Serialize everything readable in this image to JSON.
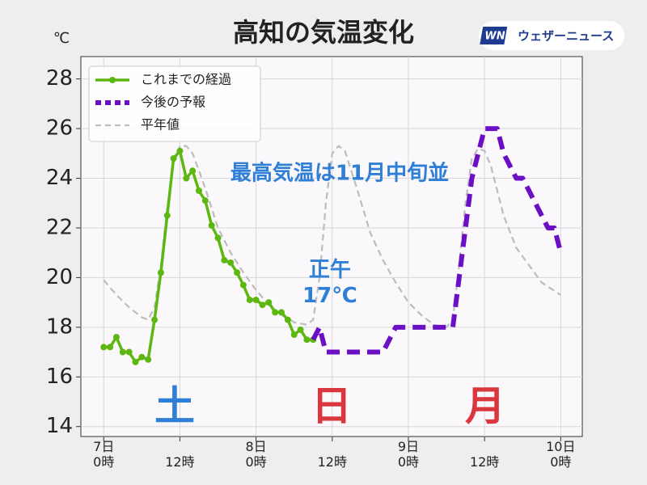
{
  "chart_data": {
    "type": "line",
    "title": "高知の気温変化",
    "y_unit": "℃",
    "brand": "ウェザーニュース",
    "brand_icon": "WN",
    "annotation": "最高気温は11月中旬並",
    "noon_note": "正午\n17℃",
    "day_labels": [
      {
        "text": "土",
        "color": "#2f7fd6"
      },
      {
        "text": "日",
        "color": "#d9363e"
      },
      {
        "text": "月",
        "color": "#d9363e"
      }
    ],
    "grid": true,
    "legend": "upper left",
    "xlim": [
      -3.6,
      75.4
    ],
    "ylim": [
      13.6,
      28.9
    ],
    "yticks": [
      14,
      16,
      18,
      20,
      22,
      24,
      26,
      28
    ],
    "xticks": [
      {
        "value": 0,
        "label": "7日\n0時"
      },
      {
        "value": 12,
        "label": "12時"
      },
      {
        "value": 24,
        "label": "8日\n0時"
      },
      {
        "value": 36,
        "label": "12時"
      },
      {
        "value": 48,
        "label": "9日\n0時"
      },
      {
        "value": 60,
        "label": "12時"
      },
      {
        "value": 72,
        "label": "10日\n0時"
      }
    ],
    "series": [
      {
        "name": "これまでの経過",
        "color": "#5cb811",
        "style": "solid-marker",
        "x": [
          0,
          1,
          2,
          3,
          4,
          5,
          6,
          7,
          8,
          9,
          10,
          11,
          12,
          13,
          14,
          15,
          16,
          17,
          18,
          19,
          20,
          21,
          22,
          23,
          24,
          25,
          26,
          27,
          28,
          29,
          30,
          31,
          32,
          33
        ],
        "values": [
          17.2,
          17.2,
          17.6,
          17.0,
          17.0,
          16.6,
          16.8,
          16.7,
          18.3,
          20.2,
          22.5,
          24.8,
          25.1,
          24.0,
          24.3,
          23.5,
          23.1,
          22.1,
          21.6,
          20.7,
          20.6,
          20.2,
          19.7,
          19.1,
          19.1,
          18.9,
          19.0,
          18.6,
          18.6,
          18.3,
          17.7,
          17.9,
          17.5,
          17.5
        ]
      },
      {
        "name": "今後の予報",
        "color": "#6a0fc4",
        "style": "thick-dash",
        "x": [
          33,
          34,
          35,
          36,
          37,
          38,
          39,
          40,
          41,
          42,
          43,
          44,
          45,
          46,
          47,
          48,
          49,
          50,
          51,
          52,
          53,
          54,
          55,
          56,
          57,
          58,
          59,
          60,
          61,
          62,
          63,
          64,
          65,
          66,
          67,
          68,
          69,
          70,
          71,
          72
        ],
        "values": [
          17.5,
          18.0,
          17.0,
          17.0,
          17.0,
          17.0,
          17.0,
          17.0,
          17.0,
          17.0,
          17.0,
          17.0,
          17.5,
          18.0,
          18.0,
          18.0,
          18.0,
          18.0,
          18.0,
          18.0,
          18.0,
          18.0,
          18.0,
          20.0,
          22.0,
          24.0,
          25.0,
          26.0,
          26.0,
          26.0,
          25.0,
          24.5,
          24.0,
          24.0,
          23.5,
          23.0,
          22.5,
          22.0,
          22.0,
          21.0
        ]
      },
      {
        "name": "平年値",
        "color": "#bdbdbd",
        "style": "thin-dash",
        "x": [
          0,
          2,
          4,
          6,
          7,
          8,
          9,
          10,
          11,
          12,
          13,
          14,
          16,
          18,
          20,
          22,
          24,
          26,
          28,
          30,
          32,
          33,
          34,
          35,
          36,
          37,
          38,
          40,
          42,
          44,
          46,
          48,
          50,
          52,
          54,
          55,
          56,
          57,
          58,
          59,
          60,
          61,
          63,
          65,
          67,
          69,
          72
        ],
        "values": [
          19.9,
          19.3,
          18.8,
          18.4,
          18.3,
          18.8,
          20.5,
          22.8,
          24.6,
          25.3,
          25.3,
          25.0,
          23.6,
          22.0,
          21.0,
          20.2,
          19.5,
          18.9,
          18.5,
          18.2,
          18.1,
          18.3,
          20.0,
          23.0,
          25.0,
          25.3,
          25.1,
          23.5,
          21.8,
          20.7,
          19.8,
          19.0,
          18.5,
          18.1,
          18.0,
          18.3,
          20.5,
          23.0,
          24.8,
          25.2,
          25.1,
          24.5,
          22.5,
          21.2,
          20.5,
          19.8,
          19.3
        ]
      }
    ]
  }
}
